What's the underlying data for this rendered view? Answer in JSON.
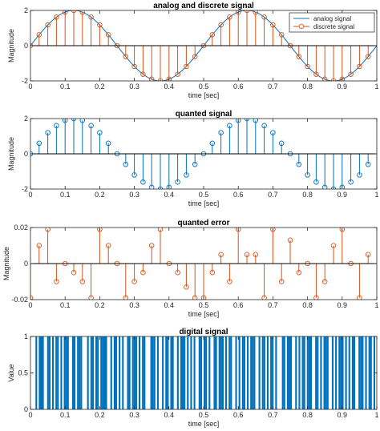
{
  "colors": {
    "analog": "#0072BD",
    "discrete": "#D95319",
    "axis": "#262626"
  },
  "chart_data": [
    {
      "id": "analog",
      "type": "line+stem",
      "title": "analog and discrete signal",
      "xlabel": "time [sec]",
      "ylabel": "Magnitude",
      "xlim": [
        0,
        1
      ],
      "ylim": [
        -2,
        2
      ],
      "xticks": [
        0,
        0.1,
        0.2,
        0.3,
        0.4,
        0.5,
        0.6,
        0.7,
        0.8,
        0.9,
        1
      ],
      "yticks": [
        -2,
        0,
        2
      ],
      "legend": {
        "placement": "top-right",
        "entries": [
          "analog signal",
          "discrete signal"
        ]
      },
      "series": [
        {
          "name": "analog signal",
          "style": "line",
          "function": "2*sin(4*pi*t)",
          "color": "#0072BD"
        },
        {
          "name": "discrete signal",
          "style": "stem-circle",
          "color": "#D95319",
          "x": [
            0,
            0.025,
            0.05,
            0.075,
            0.1,
            0.125,
            0.15,
            0.175,
            0.2,
            0.225,
            0.25,
            0.275,
            0.3,
            0.325,
            0.35,
            0.375,
            0.4,
            0.425,
            0.45,
            0.475,
            0.5,
            0.525,
            0.55,
            0.575,
            0.6,
            0.625,
            0.65,
            0.675,
            0.7,
            0.725,
            0.75,
            0.775,
            0.8,
            0.825,
            0.85,
            0.875,
            0.9,
            0.925,
            0.95,
            0.975
          ],
          "y": [
            0,
            0.62,
            1.18,
            1.62,
            1.9,
            2,
            1.9,
            1.62,
            1.18,
            0.62,
            0,
            -0.62,
            -1.18,
            -1.62,
            -1.9,
            -2,
            -1.9,
            -1.62,
            -1.18,
            -0.62,
            0,
            0.62,
            1.18,
            1.62,
            1.9,
            2,
            1.9,
            1.62,
            1.18,
            0.62,
            0,
            -0.62,
            -1.18,
            -1.62,
            -1.9,
            -2,
            -1.9,
            -1.62,
            -1.18,
            -0.62
          ]
        }
      ]
    },
    {
      "id": "quanted",
      "type": "stem",
      "title": "quanted signal",
      "xlabel": "time [sec]",
      "ylabel": "Magnitude",
      "xlim": [
        0,
        1
      ],
      "ylim": [
        -2,
        2
      ],
      "xticks": [
        0,
        0.1,
        0.2,
        0.3,
        0.4,
        0.5,
        0.6,
        0.7,
        0.8,
        0.9,
        1
      ],
      "yticks": [
        -2,
        0,
        2
      ],
      "series": [
        {
          "style": "stem-circle",
          "color": "#0072BD",
          "x": [
            0,
            0.025,
            0.05,
            0.075,
            0.1,
            0.125,
            0.15,
            0.175,
            0.2,
            0.225,
            0.25,
            0.275,
            0.3,
            0.325,
            0.35,
            0.375,
            0.4,
            0.425,
            0.45,
            0.475,
            0.5,
            0.525,
            0.55,
            0.575,
            0.6,
            0.625,
            0.65,
            0.675,
            0.7,
            0.725,
            0.75,
            0.775,
            0.8,
            0.825,
            0.85,
            0.875,
            0.9,
            0.925,
            0.95,
            0.975
          ],
          "y": [
            0,
            0.6,
            1.2,
            1.6,
            1.9,
            2,
            1.9,
            1.6,
            1.2,
            0.6,
            0,
            -0.6,
            -1.2,
            -1.6,
            -1.9,
            -2,
            -1.9,
            -1.6,
            -1.2,
            -0.6,
            0,
            0.6,
            1.2,
            1.6,
            1.9,
            2,
            1.9,
            1.6,
            1.2,
            0.6,
            0,
            -0.6,
            -1.2,
            -1.6,
            -1.9,
            -2,
            -1.9,
            -1.6,
            -1.2,
            -0.6
          ]
        }
      ]
    },
    {
      "id": "error",
      "type": "stem",
      "title": "quanted error",
      "xlabel": "time [sec]",
      "ylabel": "Magnitude",
      "xlim": [
        0,
        1
      ],
      "ylim": [
        -0.02,
        0.02
      ],
      "xticks": [
        0,
        0.1,
        0.2,
        0.3,
        0.4,
        0.5,
        0.6,
        0.7,
        0.8,
        0.9,
        1
      ],
      "yticks": [
        -0.02,
        0,
        0.02
      ],
      "series": [
        {
          "style": "stem-circle",
          "color": "#D95319",
          "x": [
            0,
            0.025,
            0.05,
            0.075,
            0.1,
            0.125,
            0.15,
            0.175,
            0.2,
            0.225,
            0.25,
            0.275,
            0.3,
            0.325,
            0.35,
            0.375,
            0.4,
            0.425,
            0.45,
            0.475,
            0.5,
            0.525,
            0.55,
            0.575,
            0.6,
            0.625,
            0.65,
            0.675,
            0.7,
            0.725,
            0.75,
            0.775,
            0.8,
            0.825,
            0.85,
            0.875,
            0.9,
            0.925,
            0.95,
            0.975
          ],
          "y": [
            -0.019,
            0.01,
            0.019,
            -0.01,
            0,
            -0.005,
            -0.01,
            -0.019,
            0.019,
            0.01,
            0,
            -0.019,
            -0.01,
            -0.005,
            0.01,
            0.019,
            0,
            -0.005,
            -0.013,
            -0.019,
            -0.019,
            -0.005,
            0.005,
            -0.01,
            0.019,
            0.005,
            0.005,
            -0.019,
            0.019,
            -0.01,
            0.013,
            -0.005,
            0,
            -0.019,
            -0.01,
            0.01,
            0.019,
            0,
            -0.019,
            0.005
          ]
        }
      ]
    },
    {
      "id": "digital",
      "type": "bar",
      "title": "digital signal",
      "xlabel": "time [sec]",
      "ylabel": "Value",
      "xlim": [
        0,
        1
      ],
      "ylim": [
        0,
        1
      ],
      "xticks": [
        0,
        0.1,
        0.2,
        0.3,
        0.4,
        0.5,
        0.6,
        0.7,
        0.8,
        0.9,
        1
      ],
      "yticks": [
        0,
        0.5,
        1
      ],
      "series": [
        {
          "style": "binary-pulses",
          "color": "#0072BD",
          "bits": "0001011100110101101011100110111000101101101111001011010100110111010110001110100101101100101110101010011011010011011101011001010110101110010110101101000110111001010110111001101011100101011101010110011101011010"
        }
      ]
    }
  ]
}
